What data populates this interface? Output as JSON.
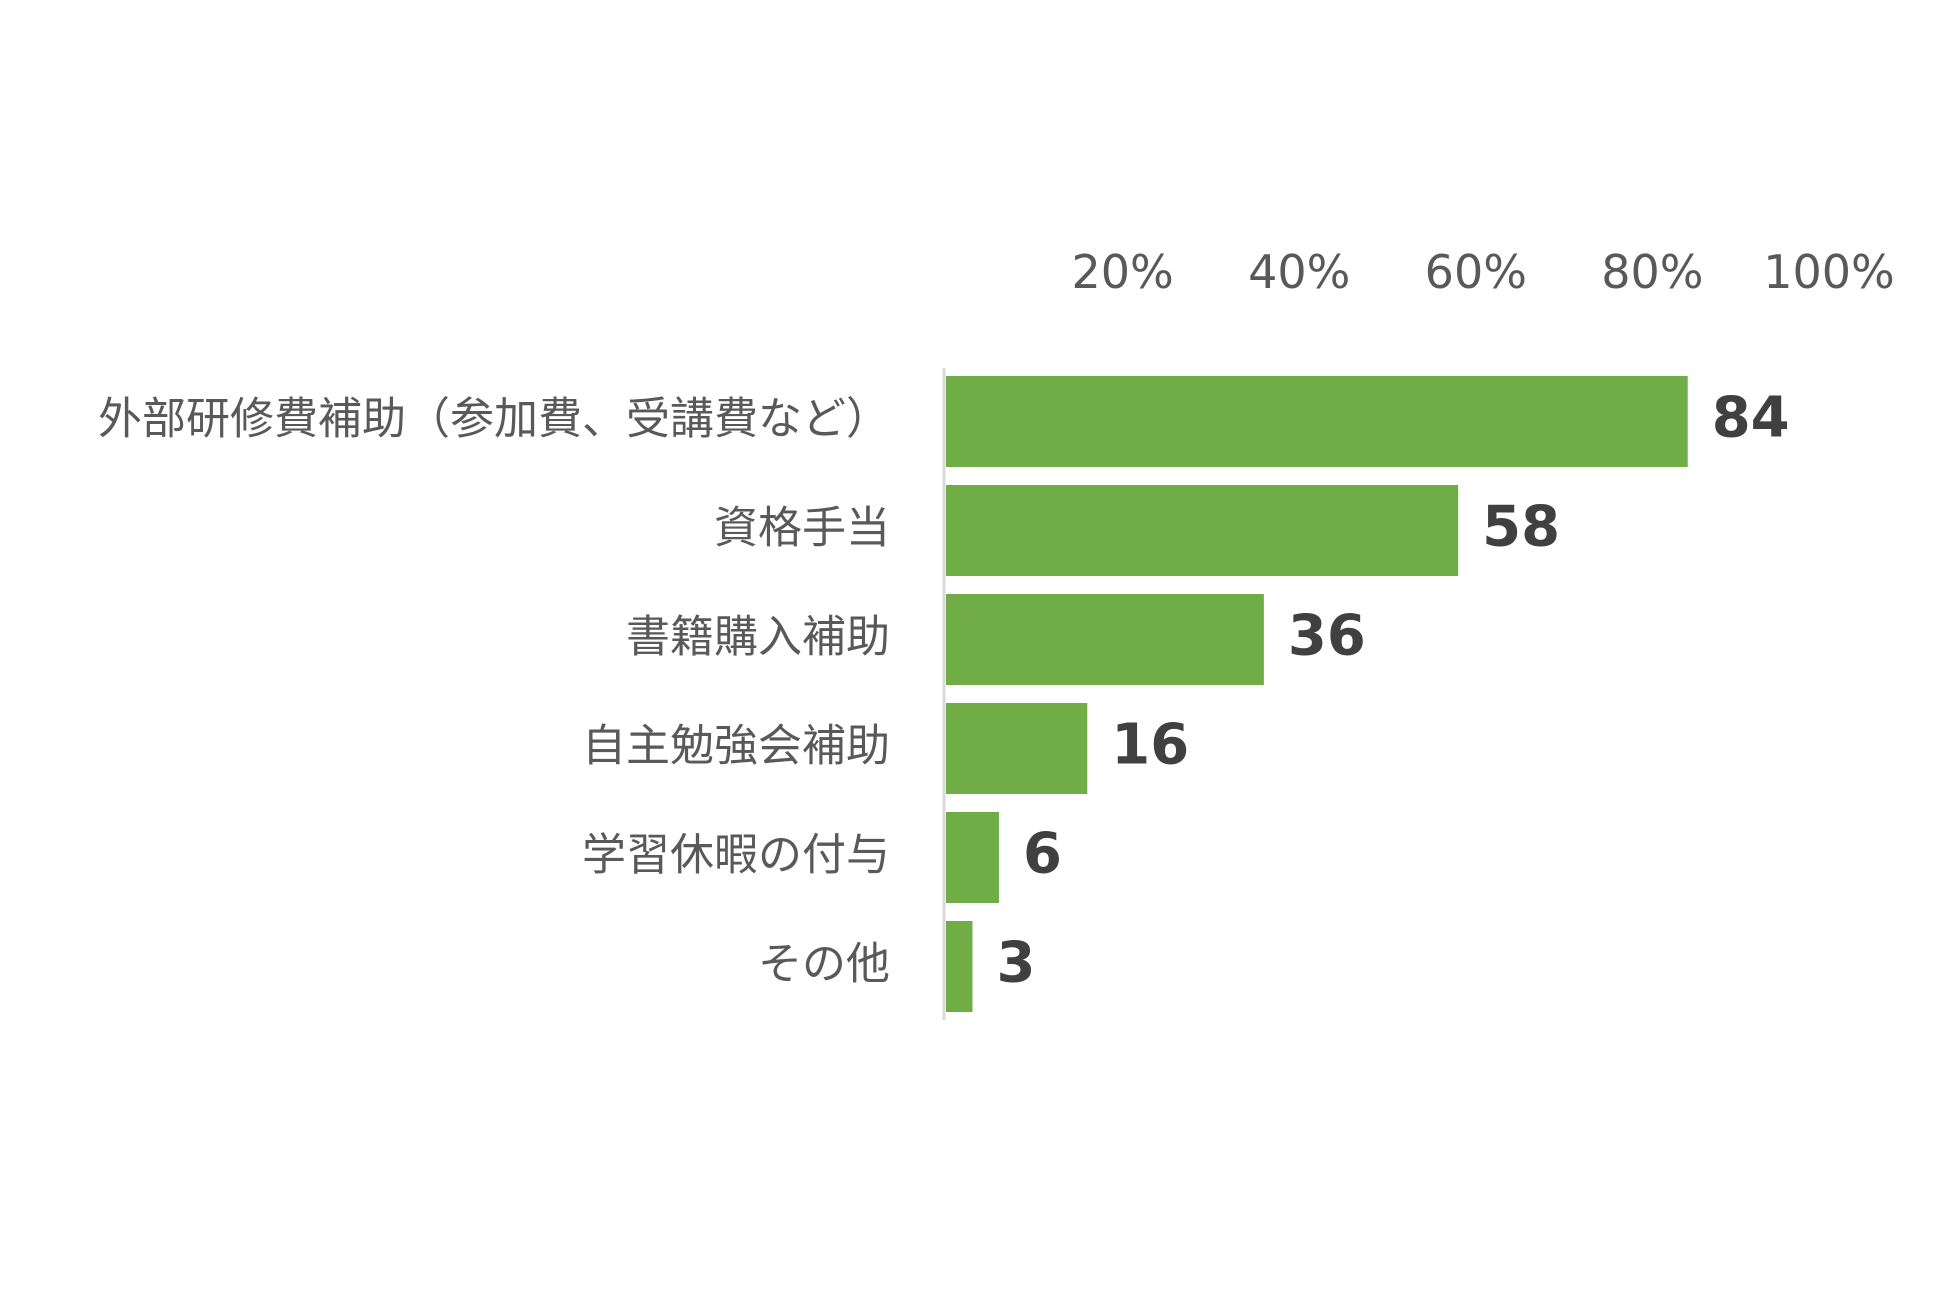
{
  "chart_data": {
    "type": "bar",
    "orientation": "horizontal",
    "title": "",
    "xlabel": "",
    "ylabel": "",
    "categories": [
      "外部研修費補助（参加費、受講費など）",
      "資格手当",
      "書籍購入補助",
      "自主勉強会補助",
      "学習休暇の付与",
      "その他"
    ],
    "values": [
      84,
      58,
      36,
      16,
      6,
      3
    ],
    "xlim": [
      0,
      100
    ],
    "x_ticks": [
      20,
      40,
      60,
      80,
      100
    ],
    "x_tick_labels": [
      "20%",
      "40%",
      "60%",
      "80%",
      "100%"
    ],
    "x_axis_position": "top",
    "grid": false,
    "legend": "none",
    "bar_color": "#70AD47",
    "axis_color": "#D9D9D9"
  }
}
